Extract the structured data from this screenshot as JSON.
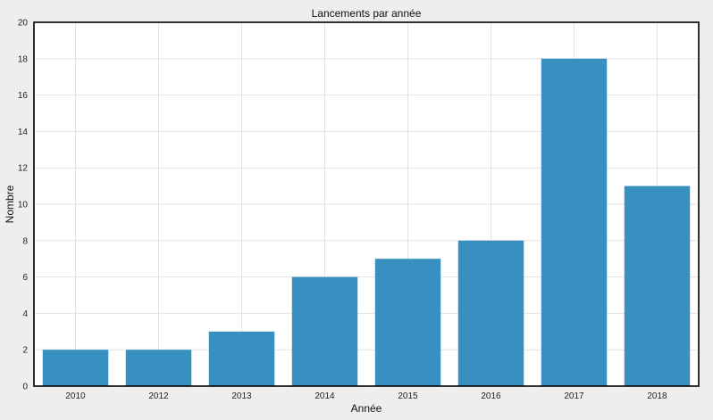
{
  "chart_data": {
    "type": "bar",
    "title": "Lancements par année",
    "xlabel": "Année",
    "ylabel": "Nombre",
    "categories": [
      "2010",
      "2012",
      "2013",
      "2014",
      "2015",
      "2016",
      "2017",
      "2018"
    ],
    "values": [
      2,
      2,
      3,
      6,
      7,
      8,
      18,
      11
    ],
    "ylim": [
      0,
      20
    ],
    "yticks": [
      0,
      2,
      4,
      6,
      8,
      10,
      12,
      14,
      16,
      18,
      20
    ],
    "grid": true,
    "legend": "none",
    "colors": {
      "bar": "#3790c0",
      "grid": "#e2e2e2",
      "axis": "#000000",
      "plot_bg": "#ffffff",
      "page_bg": "#eeeeec"
    }
  }
}
